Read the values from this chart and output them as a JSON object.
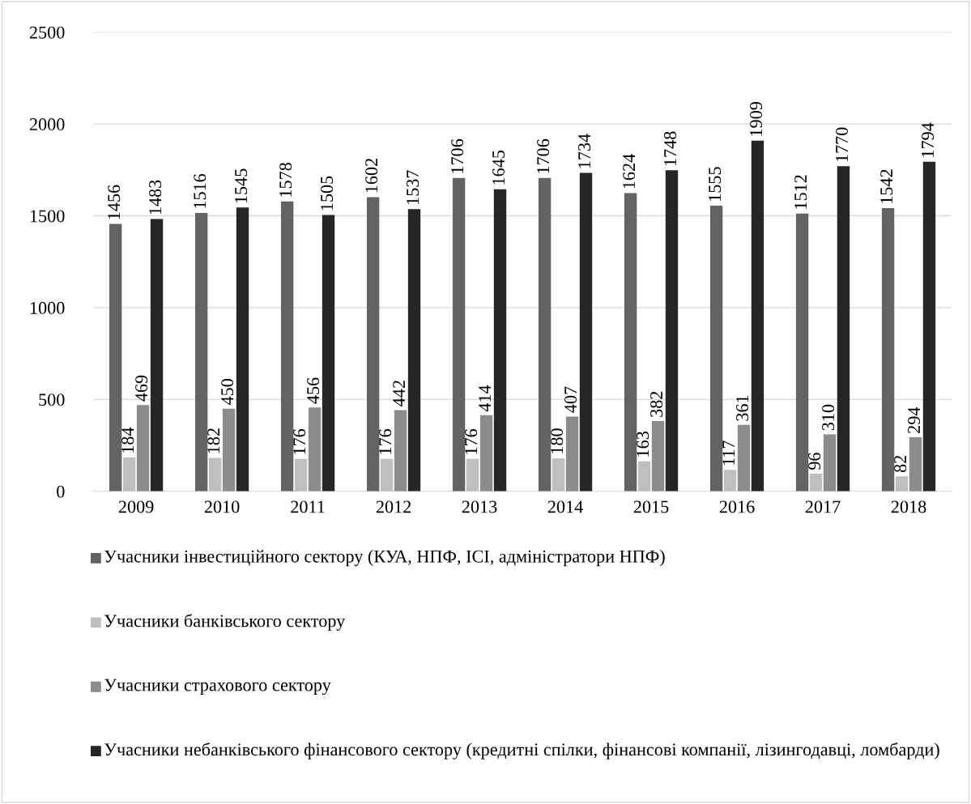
{
  "chart_data": {
    "type": "bar",
    "categories": [
      "2009",
      "2010",
      "2011",
      "2012",
      "2013",
      "2014",
      "2015",
      "2016",
      "2017",
      "2018"
    ],
    "series": [
      {
        "name": "Учасники інвестиційного сектору (КУА, НПФ, ІСІ, адміністратори НПФ)",
        "color": "#636363",
        "values": [
          1456,
          1516,
          1578,
          1602,
          1706,
          1706,
          1624,
          1555,
          1512,
          1542
        ]
      },
      {
        "name": "Учасники банківського сектору",
        "color": "#bfbfbf",
        "values": [
          184,
          182,
          176,
          176,
          176,
          180,
          163,
          117,
          96,
          82
        ]
      },
      {
        "name": "Учасники страхового сектору",
        "color": "#8c8c8c",
        "values": [
          469,
          450,
          456,
          442,
          414,
          407,
          382,
          361,
          310,
          294
        ]
      },
      {
        "name": "Учасники небанківського фінансового сектору (кредитні спілки, фінансові компанії, лізингодавці, ломбарди)",
        "color": "#262626",
        "values": [
          1483,
          1545,
          1505,
          1537,
          1645,
          1734,
          1748,
          1909,
          1770,
          1794
        ]
      }
    ],
    "ylim": [
      0,
      2500
    ],
    "yticks": [
      0,
      500,
      1000,
      1500,
      2000,
      2500
    ],
    "grid": "y",
    "legend": "bottom",
    "data_labels": true
  }
}
